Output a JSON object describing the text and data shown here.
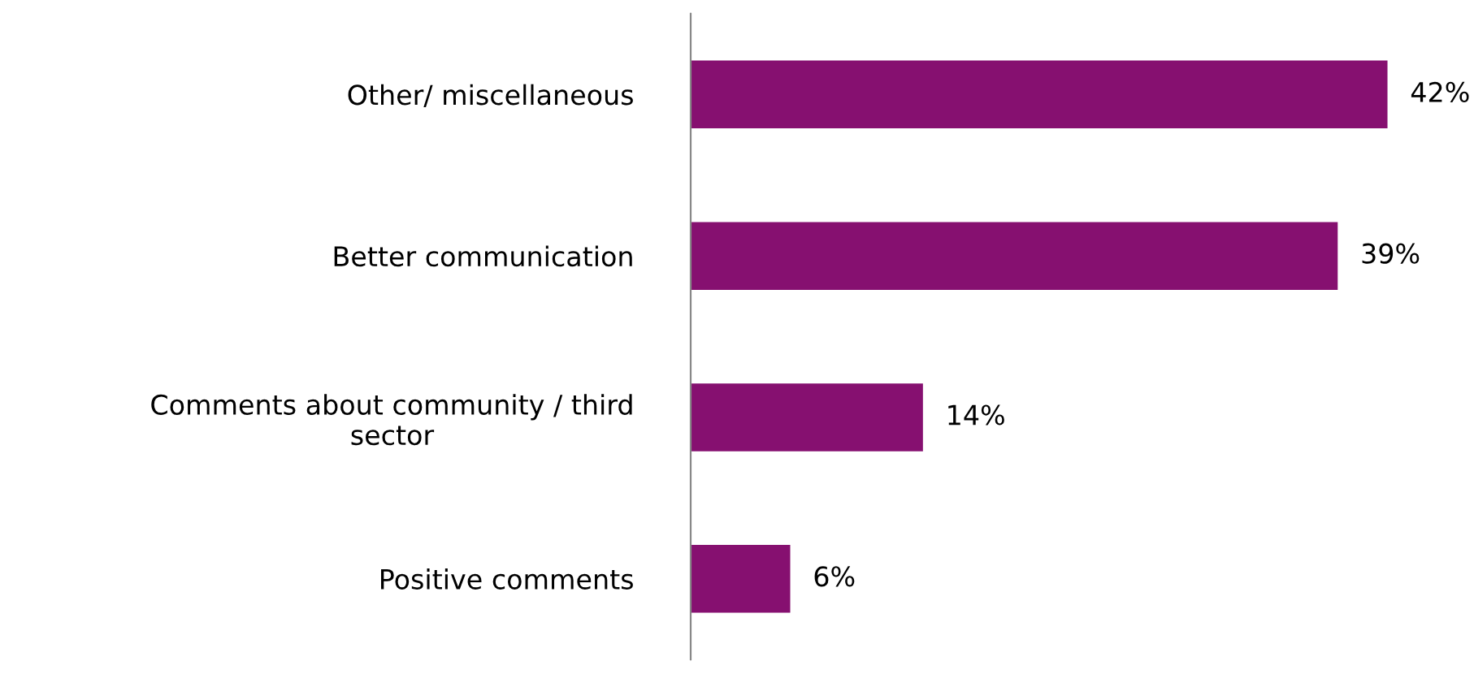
{
  "chart_data": {
    "type": "bar",
    "orientation": "horizontal",
    "categories": [
      "Other/ miscellaneous",
      "Better communication",
      "Comments about community / third\nsector",
      "Positive comments"
    ],
    "values": [
      42,
      39,
      14,
      6
    ],
    "color": "#861070",
    "value_labels": [
      "42%",
      "39%",
      "14%",
      "6%"
    ],
    "grid": false,
    "legend": false
  }
}
